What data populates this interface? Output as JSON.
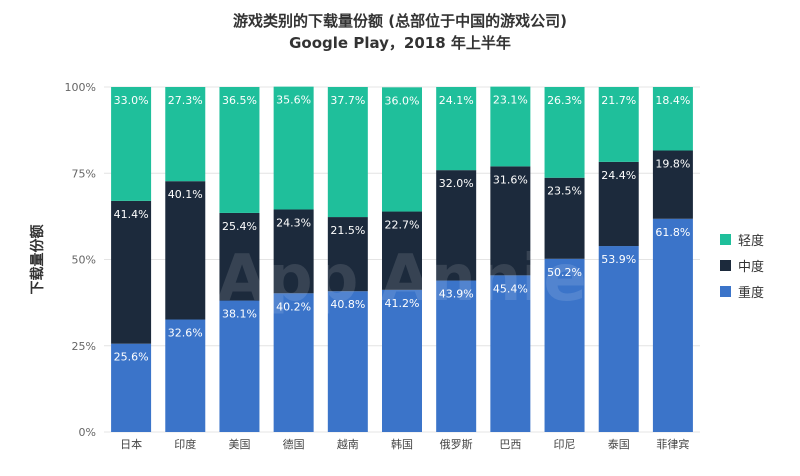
{
  "title": "游戏类别的下载量份额 (总部位于中国的游戏公司)",
  "subtitle": "Google Play，2018 年上半年",
  "watermark": "App Annie",
  "chart_data": {
    "type": "bar",
    "stacked": true,
    "percent": true,
    "categories": [
      "日本",
      "印度",
      "美国",
      "德国",
      "越南",
      "韩国",
      "俄罗斯",
      "巴西",
      "印尼",
      "泰国",
      "菲律宾"
    ],
    "series": [
      {
        "name": "重度",
        "color": "#3b74c9",
        "values": [
          25.6,
          32.6,
          38.1,
          40.2,
          40.8,
          41.2,
          43.9,
          45.4,
          50.2,
          53.9,
          61.8
        ]
      },
      {
        "name": "中度",
        "color": "#1c2a3c",
        "values": [
          41.4,
          40.1,
          25.4,
          24.3,
          21.5,
          22.7,
          32.0,
          31.6,
          23.5,
          24.4,
          19.8
        ]
      },
      {
        "name": "轻度",
        "color": "#1fbf9b",
        "values": [
          33.0,
          27.3,
          36.5,
          35.6,
          37.7,
          36.0,
          24.1,
          23.1,
          26.3,
          21.7,
          18.4
        ]
      }
    ],
    "ylabel": "下载量份额",
    "ylim": [
      0,
      100
    ],
    "yticks": [
      "0%",
      "25%",
      "50%",
      "75%",
      "100%"
    ],
    "legend_position": "right",
    "legend_order": [
      "轻度",
      "中度",
      "重度"
    ]
  }
}
